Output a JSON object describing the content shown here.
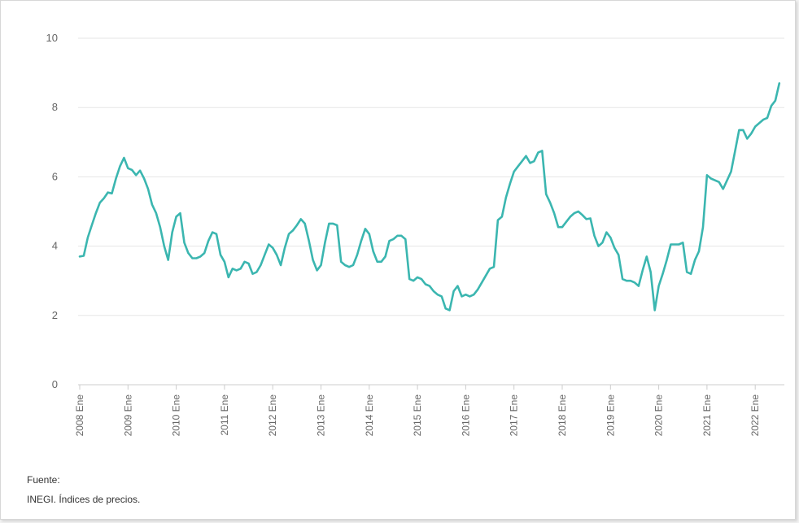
{
  "chart_data": {
    "type": "line",
    "title": "",
    "xlabel": "",
    "ylabel": "",
    "ylim": [
      0,
      10
    ],
    "y_ticks": [
      0,
      2,
      4,
      6,
      8,
      10
    ],
    "x_tick_labels": [
      "2008 Ene",
      "2009 Ene",
      "2010 Ene",
      "2011 Ene",
      "2012 Ene",
      "2013 Ene",
      "2014 Ene",
      "2015 Ene",
      "2016 Ene",
      "2017 Ene",
      "2018 Ene",
      "2019 Ene",
      "2020 Ene",
      "2021 Ene",
      "2022 Ene"
    ],
    "grid": true,
    "legend": "none",
    "line_color": "#3bb6b0",
    "series": [
      {
        "start": "2008-01",
        "frequency": "monthly",
        "values": [
          3.7,
          3.72,
          4.25,
          4.6,
          4.95,
          5.25,
          5.38,
          5.55,
          5.52,
          5.95,
          6.3,
          6.55,
          6.25,
          6.2,
          6.05,
          6.18,
          5.95,
          5.65,
          5.2,
          4.95,
          4.55,
          4.0,
          3.6,
          4.4,
          4.85,
          4.95,
          4.1,
          3.8,
          3.65,
          3.65,
          3.7,
          3.8,
          4.15,
          4.4,
          4.35,
          3.75,
          3.55,
          3.1,
          3.35,
          3.3,
          3.35,
          3.55,
          3.5,
          3.2,
          3.25,
          3.45,
          3.75,
          4.05,
          3.95,
          3.75,
          3.45,
          3.95,
          4.35,
          4.45,
          4.6,
          4.78,
          4.65,
          4.15,
          3.6,
          3.3,
          3.45,
          4.1,
          4.65,
          4.65,
          4.6,
          3.55,
          3.45,
          3.4,
          3.45,
          3.75,
          4.15,
          4.5,
          4.35,
          3.85,
          3.55,
          3.55,
          3.7,
          4.15,
          4.2,
          4.3,
          4.3,
          4.2,
          3.05,
          3.0,
          3.1,
          3.05,
          2.9,
          2.85,
          2.7,
          2.6,
          2.55,
          2.2,
          2.15,
          2.7,
          2.85,
          2.55,
          2.6,
          2.55,
          2.6,
          2.75,
          2.95,
          3.15,
          3.35,
          3.4,
          4.75,
          4.85,
          5.4,
          5.8,
          6.15,
          6.3,
          6.45,
          6.6,
          6.4,
          6.45,
          6.7,
          6.75,
          5.5,
          5.25,
          4.95,
          4.55,
          4.55,
          4.7,
          4.85,
          4.95,
          5.0,
          4.9,
          4.78,
          4.8,
          4.3,
          4.0,
          4.1,
          4.4,
          4.25,
          3.95,
          3.75,
          3.05,
          3.0,
          3.0,
          2.95,
          2.85,
          3.3,
          3.7,
          3.25,
          2.15,
          2.85,
          3.2,
          3.6,
          4.05,
          4.05,
          4.05,
          4.1,
          3.25,
          3.2,
          3.6,
          3.85,
          4.55,
          6.05,
          5.95,
          5.9,
          5.85,
          5.65,
          5.9,
          6.15,
          6.75,
          7.35,
          7.35,
          7.1,
          7.25,
          7.45,
          7.55,
          7.65,
          7.7,
          8.05,
          8.2,
          8.7
        ]
      }
    ]
  },
  "source": {
    "label": "Fuente:",
    "text": "INEGI. Índices de precios."
  }
}
